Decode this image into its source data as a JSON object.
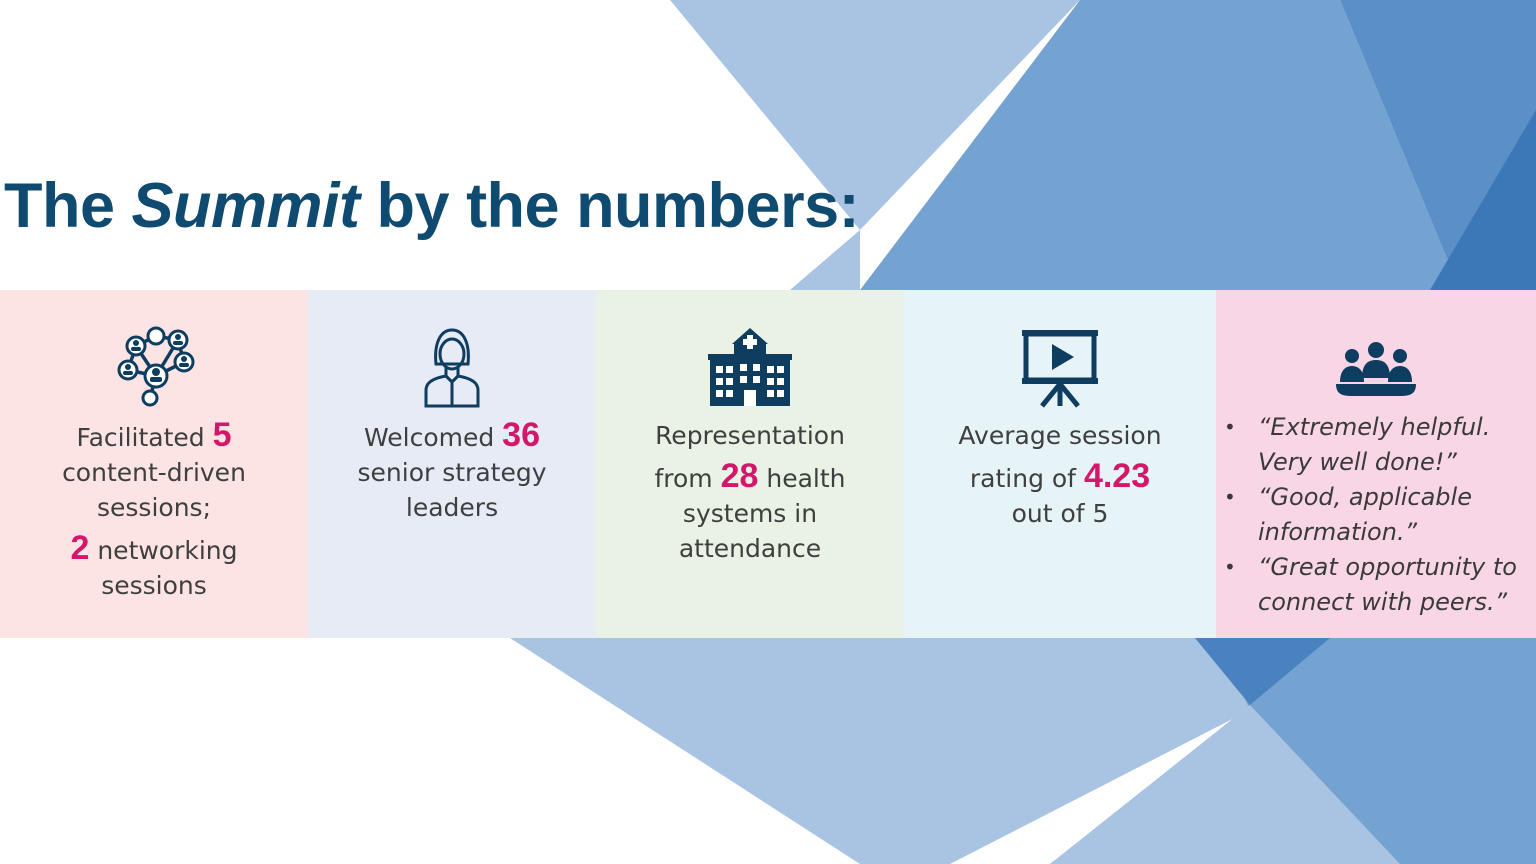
{
  "colors": {
    "title": "#0f4a70",
    "highlight": "#d3176b",
    "icon": "#0f3d60",
    "panel_backgrounds": [
      "#fbe4e3",
      "#e7ebf6",
      "#e9f2e4",
      "#e7f4f7",
      "#f8d6e5"
    ]
  },
  "title": {
    "before": "The ",
    "emphasis": "Summit",
    "after": " by the numbers:"
  },
  "stats": [
    {
      "icon": "network-icon",
      "line1": "Facilitated ",
      "value1": "5",
      "line2": "content-driven",
      "line3": "sessions;",
      "value2": "2",
      "line4": " networking",
      "line5": "sessions"
    },
    {
      "icon": "person-icon",
      "line1": "Welcomed ",
      "value": "36",
      "line2": "senior strategy",
      "line3": "leaders"
    },
    {
      "icon": "hospital-icon",
      "line1": "Representation",
      "line2_before": "from ",
      "value": "28",
      "line2_after": " health",
      "line3": "systems in",
      "line4": "attendance"
    },
    {
      "icon": "presentation-icon",
      "line1": "Average session",
      "line2_before": "rating of ",
      "value": "4.23",
      "line3": "out of 5"
    }
  ],
  "feedback": {
    "icon": "group-meeting-icon",
    "quotes": [
      "“Extremely helpful. Very well done!”",
      "“Good, applicable information.”",
      "“Great opportunity to connect with peers.”"
    ]
  }
}
